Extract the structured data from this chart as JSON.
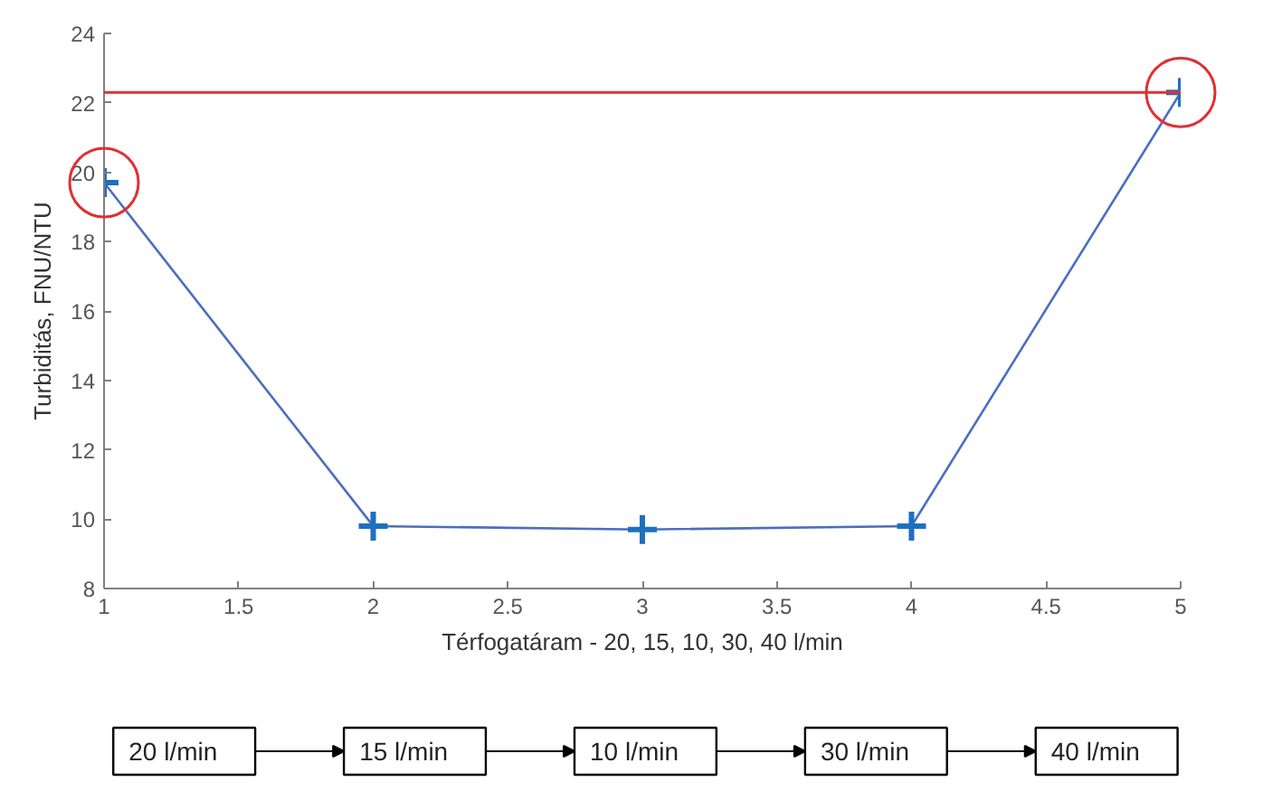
{
  "chart_data": {
    "type": "line",
    "xlabel": "Térfogatáram - 20, 15, 10, 30, 40 l/min",
    "ylabel": "Turbiditás, FNU/NTU",
    "x": [
      1,
      2,
      3,
      4,
      5
    ],
    "series": [
      {
        "color": "#1f6fc0",
        "values": [
          19.7,
          9.8,
          9.7,
          9.8,
          22.3
        ]
      }
    ],
    "marker": "cross",
    "line_style": "solid",
    "xlim": [
      1,
      5
    ],
    "xticks": [
      1,
      1.5,
      2,
      2.5,
      3,
      3.5,
      4,
      4.5,
      5
    ],
    "ylim": [
      8,
      24
    ],
    "yticks": [
      8,
      10,
      12,
      14,
      16,
      18,
      20,
      22,
      24
    ],
    "ref_lines": [
      {
        "axis": "y",
        "value": 22.3,
        "color": "#e03030"
      }
    ],
    "annotations": [
      "20 l/min",
      "15 l/min",
      "10 l/min",
      "30 l/min",
      "40 l/min"
    ]
  }
}
